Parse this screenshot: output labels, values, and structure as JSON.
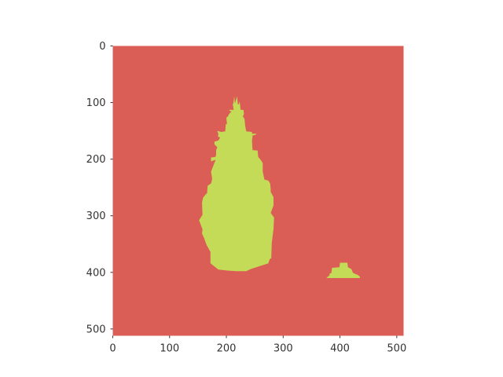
{
  "chart_data": {
    "type": "heatmap",
    "title": "",
    "xlabel": "",
    "ylabel": "",
    "xlim": [
      0,
      512
    ],
    "ylim": [
      512,
      0
    ],
    "x_ticks": [
      "0",
      "100",
      "200",
      "300",
      "400",
      "500"
    ],
    "y_ticks": [
      "0",
      "100",
      "200",
      "300",
      "400",
      "500"
    ],
    "grid": false,
    "legend": "none",
    "classes": [
      {
        "value": 0,
        "color": "#db5e56"
      },
      {
        "value": 1,
        "color": "#c3db56"
      }
    ],
    "regions": [
      {
        "class": 1,
        "polygon": [
          [
            213,
            113
          ],
          [
            211,
            102
          ],
          [
            212,
            103
          ],
          [
            214,
            89
          ],
          [
            215,
            102
          ],
          [
            219,
            89
          ],
          [
            220,
            103
          ],
          [
            222,
            103
          ],
          [
            223,
            98
          ],
          [
            224,
            103
          ],
          [
            225,
            113
          ],
          [
            230,
            113
          ],
          [
            231,
            120
          ],
          [
            229,
            125
          ],
          [
            231,
            127
          ],
          [
            232,
            130
          ],
          [
            233,
            141
          ],
          [
            235,
            151
          ],
          [
            245,
            152
          ],
          [
            245,
            155
          ],
          [
            253,
            155
          ],
          [
            251,
            157
          ],
          [
            246,
            158
          ],
          [
            246,
            160
          ],
          [
            245,
            167
          ],
          [
            246,
            184
          ],
          [
            255,
            185
          ],
          [
            256,
            196
          ],
          [
            261,
            202
          ],
          [
            264,
            207
          ],
          [
            264,
            222
          ],
          [
            267,
            236
          ],
          [
            274,
            238
          ],
          [
            277,
            243
          ],
          [
            278,
            253
          ],
          [
            278,
            258
          ],
          [
            283,
            267
          ],
          [
            283,
            282
          ],
          [
            278,
            295
          ],
          [
            284,
            303
          ],
          [
            283,
            323
          ],
          [
            280,
            348
          ],
          [
            279,
            375
          ],
          [
            276,
            377
          ],
          [
            274,
            384
          ],
          [
            243,
            394
          ],
          [
            235,
            398
          ],
          [
            218,
            398
          ],
          [
            204,
            397
          ],
          [
            186,
            395
          ],
          [
            172,
            384
          ],
          [
            172,
            364
          ],
          [
            165,
            351
          ],
          [
            161,
            340
          ],
          [
            157,
            331
          ],
          [
            158,
            324
          ],
          [
            152,
            308
          ],
          [
            158,
            298
          ],
          [
            157,
            277
          ],
          [
            159,
            268
          ],
          [
            163,
            263
          ],
          [
            166,
            260
          ],
          [
            167,
            247
          ],
          [
            173,
            243
          ],
          [
            175,
            235
          ],
          [
            173,
            222
          ],
          [
            180,
            204
          ],
          [
            181,
            201
          ],
          [
            173,
            204
          ],
          [
            173,
            197
          ],
          [
            181,
            196
          ],
          [
            182,
            192
          ],
          [
            182,
            184
          ],
          [
            184,
            179
          ],
          [
            179,
            174
          ],
          [
            179,
            169
          ],
          [
            186,
            167
          ],
          [
            189,
            162
          ],
          [
            185,
            160
          ],
          [
            186,
            156
          ],
          [
            184,
            150
          ],
          [
            191,
            152
          ],
          [
            198,
            151
          ],
          [
            199,
            138
          ],
          [
            201,
            138
          ],
          [
            200,
            127
          ],
          [
            203,
            124
          ],
          [
            205,
            120
          ],
          [
            209,
            116
          ],
          [
            205,
            114
          ],
          [
            206,
            113
          ]
        ]
      },
      {
        "class": 1,
        "polygon": [
          [
            377,
            409
          ],
          [
            382,
            405
          ],
          [
            381,
            403
          ],
          [
            385,
            401
          ],
          [
            386,
            392
          ],
          [
            399,
            391
          ],
          [
            400,
            383
          ],
          [
            413,
            383
          ],
          [
            414,
            391
          ],
          [
            420,
            394
          ],
          [
            423,
            401
          ],
          [
            432,
            405
          ],
          [
            435,
            408
          ],
          [
            435,
            410
          ],
          [
            376,
            410
          ]
        ]
      }
    ]
  }
}
